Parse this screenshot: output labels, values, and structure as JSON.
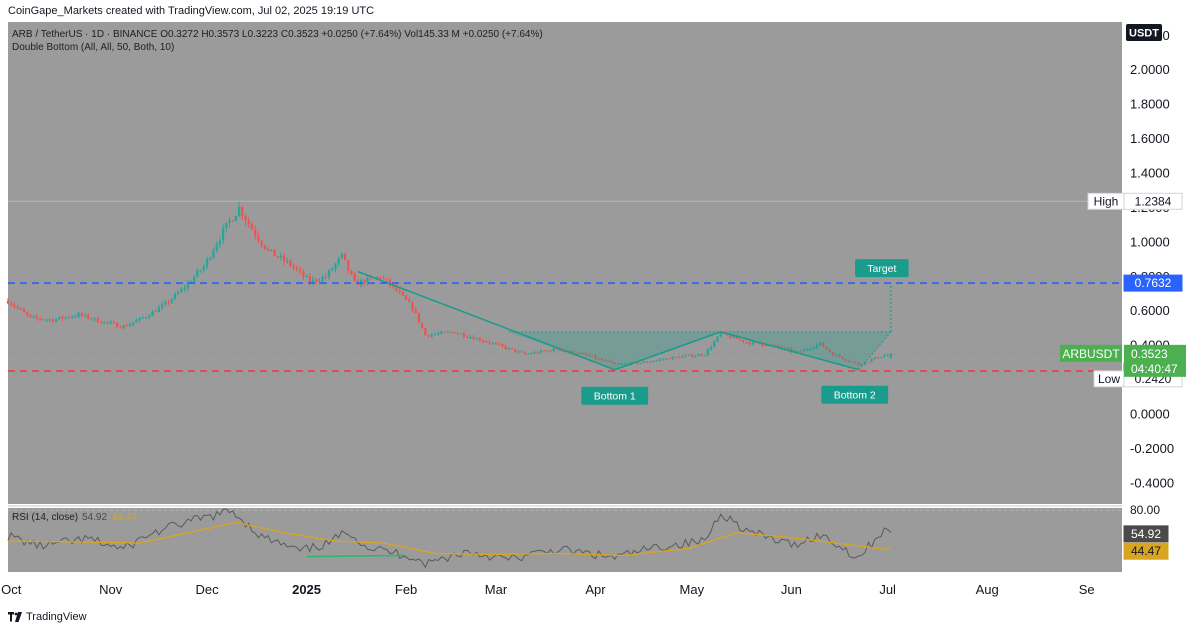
{
  "header": {
    "created_by": "CoinGape_Markets created with TradingView.com, Jul 02, 2025 19:19 UTC"
  },
  "legend": {
    "symbol": "ARB / TetherUS · 1D · BINANCE",
    "ohlc": "O0.3272  H0.3573  L0.3223  C0.3523  +0.0250 (+7.64%)",
    "volume": "Vol145.33 M  +0.0250 (+7.64%)",
    "indicator": "Double Bottom (All, All, 50, Both, 10)"
  },
  "currency_badge": "USDT",
  "footer": {
    "brand": "TradingView"
  },
  "colors": {
    "up": "#26a69a",
    "down": "#ef5350",
    "target_line": "#2962ff",
    "support_line": "#f23645",
    "pattern": "#1a9c8c",
    "rsi": "#5a5a5a",
    "rsi_ma": "#d9a520",
    "bg": "#9b9b9b"
  },
  "chart_data": {
    "type": "candlestick",
    "symbol": "ARBUSDT",
    "price_axis": {
      "ylim": [
        -0.52,
        2.28
      ],
      "ticks": [
        "2.2000",
        "2.0000",
        "1.8000",
        "1.6000",
        "1.4000",
        "1.2000",
        "1.0000",
        "0.8000",
        "0.6000",
        "0.4000",
        "0.2000",
        "0.0000",
        "-0.2000",
        "-0.4000"
      ]
    },
    "x_axis": {
      "labels": [
        "Oct",
        "Nov",
        "Dec",
        "2025",
        "Feb",
        "Mar",
        "Apr",
        "May",
        "Jun",
        "Jul",
        "Aug",
        "Se"
      ],
      "dates": [
        "2024-10-01",
        "2024-11-01",
        "2024-12-01",
        "2025-01-01",
        "2025-02-01",
        "2025-03-01",
        "2025-04-01",
        "2025-05-01",
        "2025-06-01",
        "2025-07-01",
        "2025-08-01",
        "2025-09-01"
      ],
      "range": [
        "2024-09-30",
        "2025-09-12"
      ]
    },
    "close_anchors": [
      [
        "2024-09-30",
        0.66
      ],
      [
        "2024-10-07",
        0.56
      ],
      [
        "2024-10-14",
        0.55
      ],
      [
        "2024-10-22",
        0.58
      ],
      [
        "2024-10-29",
        0.54
      ],
      [
        "2024-11-05",
        0.51
      ],
      [
        "2024-11-11",
        0.56
      ],
      [
        "2024-11-18",
        0.64
      ],
      [
        "2024-11-24",
        0.74
      ],
      [
        "2024-11-30",
        0.86
      ],
      [
        "2024-12-04",
        1.0
      ],
      [
        "2024-12-08",
        1.12
      ],
      [
        "2024-12-11",
        1.2
      ],
      [
        "2024-12-16",
        1.05
      ],
      [
        "2024-12-20",
        0.95
      ],
      [
        "2024-12-27",
        0.87
      ],
      [
        "2025-01-02",
        0.77
      ],
      [
        "2025-01-07",
        0.8
      ],
      [
        "2025-01-12",
        0.92
      ],
      [
        "2025-01-16",
        0.76
      ],
      [
        "2025-01-24",
        0.8
      ],
      [
        "2025-01-29",
        0.72
      ],
      [
        "2025-02-03",
        0.62
      ],
      [
        "2025-02-07",
        0.46
      ],
      [
        "2025-02-16",
        0.48
      ],
      [
        "2025-02-25",
        0.43
      ],
      [
        "2025-03-10",
        0.35
      ],
      [
        "2025-03-20",
        0.38
      ],
      [
        "2025-03-30",
        0.34
      ],
      [
        "2025-04-07",
        0.29
      ],
      [
        "2025-04-15",
        0.3
      ],
      [
        "2025-04-25",
        0.33
      ],
      [
        "2025-05-05",
        0.35
      ],
      [
        "2025-05-10",
        0.47
      ],
      [
        "2025-05-18",
        0.42
      ],
      [
        "2025-05-26",
        0.4
      ],
      [
        "2025-06-03",
        0.36
      ],
      [
        "2025-06-10",
        0.41
      ],
      [
        "2025-06-14",
        0.35
      ],
      [
        "2025-06-22",
        0.29
      ],
      [
        "2025-06-26",
        0.32
      ],
      [
        "2025-07-02",
        0.3523
      ]
    ],
    "last_candle": {
      "date": "2025-07-02",
      "open": 0.3272,
      "high": 0.3573,
      "low": 0.3223,
      "close": 0.3523
    },
    "all_time_high": {
      "date": "2024-12-09",
      "value": 1.2384
    },
    "period_low": {
      "date": "2025-04-07",
      "value": 0.242
    },
    "levels": [
      {
        "name": "target",
        "value": 0.7632,
        "label": "0.7632"
      },
      {
        "name": "support",
        "value": 0.2526,
        "label": "0.2526"
      }
    ],
    "price_labels": {
      "high_text": "High",
      "high_value": "1.2384",
      "low_text": "Low",
      "low_value": "0.2420",
      "symbol_tag": "ARBUSDT",
      "last_value": "0.3523",
      "countdown": "04:40:47",
      "support_value": "0.2526",
      "target_value": "0.7632"
    },
    "pattern": {
      "name": "Double Bottom",
      "points": [
        [
          "2025-01-17",
          0.83
        ],
        [
          "2025-04-07",
          0.26
        ],
        [
          "2025-05-10",
          0.48
        ],
        [
          "2025-06-22",
          0.26
        ]
      ],
      "neckline": 0.48,
      "box_end": "2025-07-02",
      "target_value": 0.7632,
      "labels": {
        "bottom1": "Bottom 1",
        "bottom2": "Bottom 2",
        "target": "Target"
      }
    },
    "rsi": {
      "title": "RSI (14, close)",
      "value": "54.92",
      "ma_value": "44.47",
      "axis_tick": "80.00",
      "ylim": [
        20,
        82
      ],
      "anchors": [
        [
          "2024-09-30",
          55
        ],
        [
          "2024-10-10",
          45
        ],
        [
          "2024-10-25",
          52
        ],
        [
          "2024-11-05",
          42
        ],
        [
          "2024-11-12",
          55
        ],
        [
          "2024-11-22",
          66
        ],
        [
          "2024-12-02",
          74
        ],
        [
          "2024-12-09",
          79
        ],
        [
          "2024-12-18",
          54
        ],
        [
          "2024-12-30",
          40
        ],
        [
          "2025-01-08",
          48
        ],
        [
          "2025-01-14",
          60
        ],
        [
          "2025-01-20",
          44
        ],
        [
          "2025-02-03",
          35
        ],
        [
          "2025-02-07",
          28
        ],
        [
          "2025-02-20",
          40
        ],
        [
          "2025-03-05",
          32
        ],
        [
          "2025-03-20",
          42
        ],
        [
          "2025-04-07",
          34
        ],
        [
          "2025-04-20",
          44
        ],
        [
          "2025-05-05",
          50
        ],
        [
          "2025-05-10",
          78
        ],
        [
          "2025-05-18",
          60
        ],
        [
          "2025-06-01",
          46
        ],
        [
          "2025-06-10",
          56
        ],
        [
          "2025-06-22",
          34
        ],
        [
          "2025-06-30",
          62
        ],
        [
          "2025-07-02",
          55
        ]
      ],
      "ma_anchors": [
        [
          "2024-09-30",
          50
        ],
        [
          "2024-10-25",
          49
        ],
        [
          "2024-11-10",
          48
        ],
        [
          "2024-11-25",
          58
        ],
        [
          "2024-12-10",
          68
        ],
        [
          "2024-12-25",
          58
        ],
        [
          "2025-01-10",
          50
        ],
        [
          "2025-01-25",
          48
        ],
        [
          "2025-02-10",
          38
        ],
        [
          "2025-03-01",
          37
        ],
        [
          "2025-03-20",
          38
        ],
        [
          "2025-04-10",
          36
        ],
        [
          "2025-04-30",
          43
        ],
        [
          "2025-05-15",
          58
        ],
        [
          "2025-05-30",
          54
        ],
        [
          "2025-06-15",
          48
        ],
        [
          "2025-06-30",
          42
        ],
        [
          "2025-07-02",
          44.47
        ]
      ],
      "divergence": [
        [
          "2025-01-01",
          35
        ],
        [
          "2025-02-01",
          36
        ]
      ]
    }
  }
}
